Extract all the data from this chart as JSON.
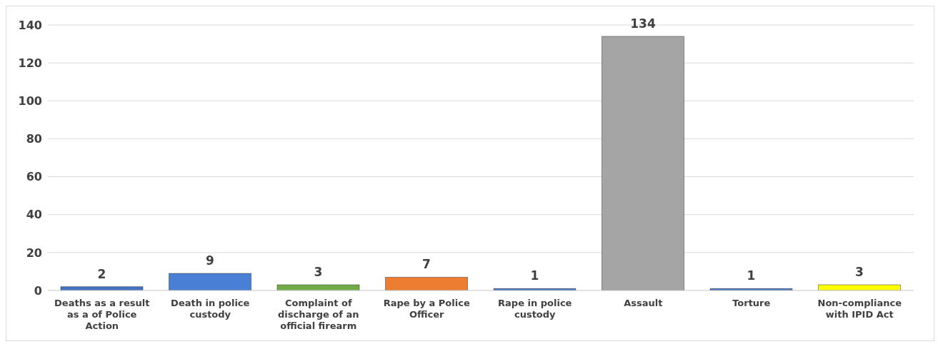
{
  "chart_data": {
    "type": "bar",
    "categories": [
      "Deaths as a result as a of Police Action",
      "Death in police custody",
      "Complaint of discharge of an official firearm",
      "Rape by a Police Officer",
      "Rape in police custody",
      "Assault",
      "Torture",
      "Non-compliance with IPID Act"
    ],
    "values": [
      2,
      9,
      3,
      7,
      1,
      134,
      1,
      3
    ],
    "colors": [
      "#4472c4",
      "#4a7fd6",
      "#70ad47",
      "#ed7d31",
      "#4472c4",
      "#a5a5a5",
      "#4472c4",
      "#ffff00"
    ],
    "ylim": [
      0,
      140
    ],
    "yticks": [
      0,
      20,
      40,
      60,
      80,
      100,
      120,
      140
    ],
    "grid": "y",
    "data_labels": true
  }
}
